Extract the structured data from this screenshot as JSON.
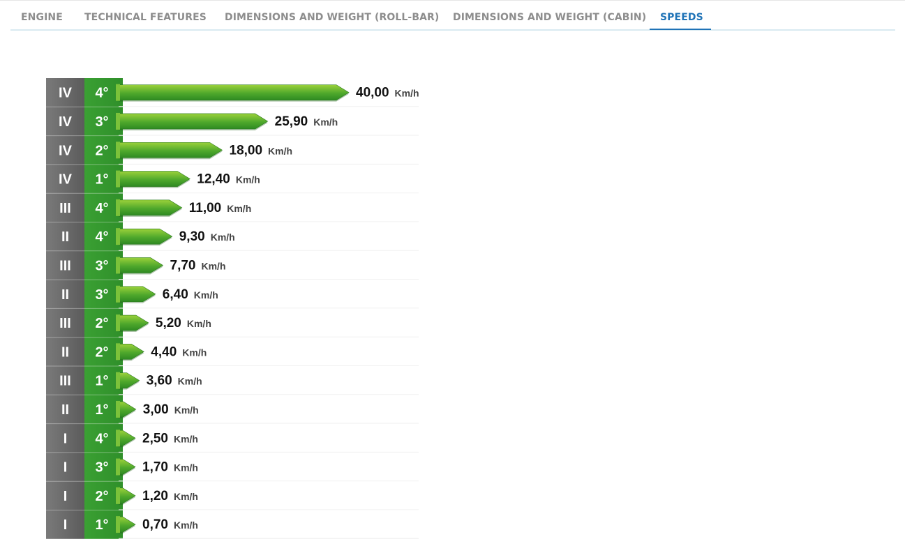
{
  "tabs": [
    {
      "label": "ENGINE",
      "active": false
    },
    {
      "label": "TECHNICAL FEATURES",
      "active": false
    },
    {
      "label": "DIMENSIONS AND WEIGHT (ROLL-BAR)",
      "active": false
    },
    {
      "label": "DIMENSIONS AND WEIGHT (CABIN)",
      "active": false
    },
    {
      "label": "SPEEDS",
      "active": true
    }
  ],
  "colors": {
    "active_tab": "#1f73b7",
    "inactive_tab": "#8d8d8d",
    "range_column": "#5b5b5b",
    "gear_column": "#2f8f2a",
    "bar_green_light": "#9bd13a",
    "bar_green_dark": "#2e8a22"
  },
  "chart_data": {
    "type": "bar",
    "orientation": "horizontal",
    "unit": "Km/h",
    "xlim": [
      0,
      40
    ],
    "grid": false,
    "rows": [
      {
        "range": "IV",
        "gear": "4°",
        "value": 40.0,
        "label": "40,00"
      },
      {
        "range": "IV",
        "gear": "3°",
        "value": 25.9,
        "label": "25,90"
      },
      {
        "range": "IV",
        "gear": "2°",
        "value": 18.0,
        "label": "18,00"
      },
      {
        "range": "IV",
        "gear": "1°",
        "value": 12.4,
        "label": "12,40"
      },
      {
        "range": "III",
        "gear": "4°",
        "value": 11.0,
        "label": "11,00"
      },
      {
        "range": "II",
        "gear": "4°",
        "value": 9.3,
        "label": "9,30"
      },
      {
        "range": "III",
        "gear": "3°",
        "value": 7.7,
        "label": "7,70"
      },
      {
        "range": "II",
        "gear": "3°",
        "value": 6.4,
        "label": "6,40"
      },
      {
        "range": "III",
        "gear": "2°",
        "value": 5.2,
        "label": "5,20"
      },
      {
        "range": "II",
        "gear": "2°",
        "value": 4.4,
        "label": "4,40"
      },
      {
        "range": "III",
        "gear": "1°",
        "value": 3.6,
        "label": "3,60"
      },
      {
        "range": "II",
        "gear": "1°",
        "value": 3.0,
        "label": "3,00"
      },
      {
        "range": "I",
        "gear": "4°",
        "value": 2.5,
        "label": "2,50"
      },
      {
        "range": "I",
        "gear": "3°",
        "value": 1.7,
        "label": "1,70"
      },
      {
        "range": "I",
        "gear": "2°",
        "value": 1.2,
        "label": "1,20"
      },
      {
        "range": "I",
        "gear": "1°",
        "value": 0.7,
        "label": "0,70"
      }
    ]
  }
}
